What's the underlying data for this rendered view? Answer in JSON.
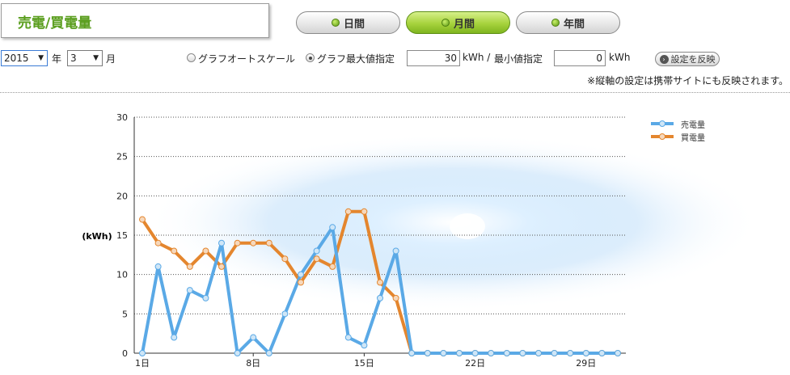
{
  "header": {
    "title": "売電/買電量"
  },
  "tabs": [
    {
      "label": "日間",
      "active": false
    },
    {
      "label": "月間",
      "active": true
    },
    {
      "label": "年間",
      "active": false
    }
  ],
  "controls": {
    "year_value": "2015",
    "year_suffix": "年",
    "month_value": "3",
    "month_suffix": "月",
    "radio_auto_label": "グラフオートスケール",
    "radio_max_label": "グラフ最大値指定",
    "max_value": "30",
    "max_unit": "kWh /",
    "min_label": "最小値指定",
    "min_value": "0",
    "min_unit": "kWh",
    "apply_label": "設定を反映",
    "note": "※縦軸の設定は携帯サイトにも反映されます。"
  },
  "colors": {
    "sell": "#5aa9e6",
    "buy": "#e4862e",
    "accent": "#5a9e1e"
  },
  "chart_data": {
    "type": "line",
    "ylabel": "(kWh)",
    "ylim": [
      0,
      30
    ],
    "yticks": [
      0,
      5,
      10,
      15,
      20,
      25,
      30
    ],
    "x": [
      1,
      2,
      3,
      4,
      5,
      6,
      7,
      8,
      9,
      10,
      11,
      12,
      13,
      14,
      15,
      16,
      17,
      18,
      19,
      20,
      21,
      22,
      23,
      24,
      25,
      26,
      27,
      28,
      29,
      30,
      31
    ],
    "xtick_labels": [
      {
        "day": 1,
        "label": "1日"
      },
      {
        "day": 8,
        "label": "8日"
      },
      {
        "day": 15,
        "label": "15日"
      },
      {
        "day": 22,
        "label": "22日"
      },
      {
        "day": 29,
        "label": "29日"
      }
    ],
    "grid": true,
    "legend": "top-right",
    "series": [
      {
        "name": "売電量",
        "color": "#5aa9e6",
        "values": [
          0,
          11,
          2,
          8,
          7,
          14,
          0,
          2,
          0,
          5,
          10,
          13,
          16,
          2,
          1,
          7,
          13,
          0,
          0,
          0,
          0,
          0,
          0,
          0,
          0,
          0,
          0,
          0,
          0,
          0,
          0
        ]
      },
      {
        "name": "買電量",
        "color": "#e4862e",
        "values": [
          17,
          14,
          13,
          11,
          13,
          11,
          14,
          14,
          14,
          12,
          9,
          12,
          11,
          18,
          18,
          9,
          7,
          0,
          0,
          0,
          0,
          0,
          0,
          0,
          0,
          0,
          0,
          0,
          0,
          0,
          0
        ]
      }
    ]
  }
}
